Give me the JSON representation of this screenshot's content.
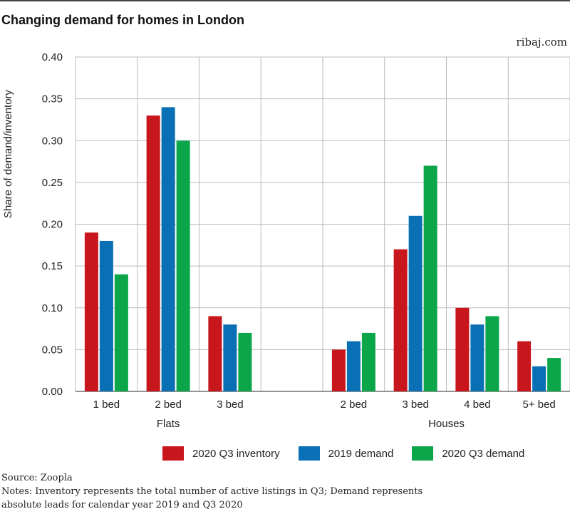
{
  "header": {
    "title": "Changing demand for homes in London",
    "site": "ribaj.com"
  },
  "colors": {
    "inventory": "#c8161d",
    "demand2019": "#0a70b5",
    "demand2020": "#0ca64a",
    "grid": "#bbbbbb"
  },
  "chart_data": {
    "type": "bar",
    "title": "Changing demand for homes in London",
    "ylabel": "Share of demand/inventory",
    "ylim": [
      0,
      0.4
    ],
    "yticks": [
      "0.00",
      "0.05",
      "0.10",
      "0.15",
      "0.20",
      "0.25",
      "0.30",
      "0.35",
      "0.40"
    ],
    "groups": [
      {
        "label": "Flats",
        "categories": [
          "1 bed",
          "2 bed",
          "3 bed"
        ]
      },
      {
        "label": "Houses",
        "categories": [
          "2 bed",
          "3 bed",
          "4 bed",
          "5+ bed"
        ]
      }
    ],
    "categories": [
      "1 bed",
      "2 bed",
      "3 bed",
      "",
      "2 bed",
      "3 bed",
      "4 bed",
      "5+ bed"
    ],
    "series": [
      {
        "name": "2020 Q3 inventory",
        "color": "#c8161d",
        "values": [
          0.19,
          0.33,
          0.09,
          null,
          0.05,
          0.17,
          0.1,
          0.06
        ]
      },
      {
        "name": "2019 demand",
        "color": "#0a70b5",
        "values": [
          0.18,
          0.34,
          0.08,
          null,
          0.06,
          0.21,
          0.08,
          0.03
        ]
      },
      {
        "name": "2020 Q3 demand",
        "color": "#0ca64a",
        "values": [
          0.14,
          0.3,
          0.07,
          null,
          0.07,
          0.27,
          0.09,
          0.04
        ]
      }
    ],
    "grid": true,
    "legend": "bottom"
  },
  "footer": {
    "source": "Source: Zoopla",
    "notes_line1": "Notes: Inventory represents the total number of active listings in Q3; Demand represents",
    "notes_line2": "absolute leads for calendar year 2019 and Q3 2020"
  }
}
